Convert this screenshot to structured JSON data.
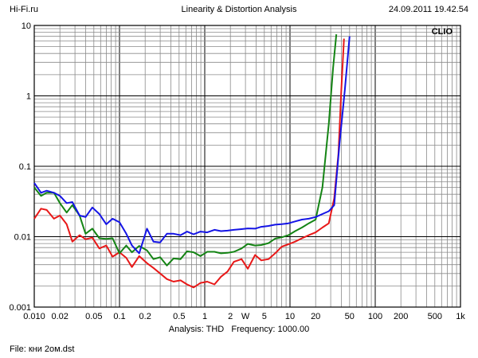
{
  "header": {
    "site": "Hi-Fi.ru",
    "title": "Linearity & Distortion Analysis",
    "timestamp": "24.09.2011 19.42.54"
  },
  "footer": {
    "analysis": "Analysis: THD",
    "frequency": "Frequency: 1000.00",
    "file": "File: кни 2ом.dst"
  },
  "brand_label": "CLIO",
  "chart_data": {
    "type": "line",
    "xscale": "log",
    "yscale": "log",
    "xlim": [
      0.01,
      1000
    ],
    "ylim": [
      0.001,
      10
    ],
    "grid": true,
    "xticks": [
      {
        "v": 0.01,
        "label": "0.010"
      },
      {
        "v": 0.02,
        "label": "0.02"
      },
      {
        "v": 0.05,
        "label": "0.05"
      },
      {
        "v": 0.1,
        "label": "0.1"
      },
      {
        "v": 0.2,
        "label": "0.2"
      },
      {
        "v": 0.5,
        "label": "0.5"
      },
      {
        "v": 1,
        "label": "1"
      },
      {
        "v": 2,
        "label": "2"
      },
      {
        "v": 3,
        "label": "W"
      },
      {
        "v": 5,
        "label": "5"
      },
      {
        "v": 10,
        "label": "10"
      },
      {
        "v": 20,
        "label": "20"
      },
      {
        "v": 50,
        "label": "50"
      },
      {
        "v": 100,
        "label": "100"
      },
      {
        "v": 200,
        "label": "200"
      },
      {
        "v": 500,
        "label": "500"
      },
      {
        "v": 1000,
        "label": "1k"
      }
    ],
    "yticks": [
      {
        "v": 10,
        "label": "10"
      },
      {
        "v": 1,
        "label": "1"
      },
      {
        "v": 0.1,
        "label": "0.1"
      },
      {
        "v": 0.01,
        "label": "0.01"
      },
      {
        "v": 0.001,
        "label": "0.001"
      }
    ],
    "series": [
      {
        "color": "#e81818",
        "points": [
          [
            0.01,
            0.018
          ],
          [
            0.012,
            0.025
          ],
          [
            0.014,
            0.024
          ],
          [
            0.017,
            0.018
          ],
          [
            0.02,
            0.02
          ],
          [
            0.024,
            0.015
          ],
          [
            0.028,
            0.0085
          ],
          [
            0.034,
            0.0105
          ],
          [
            0.04,
            0.0092
          ],
          [
            0.048,
            0.0097
          ],
          [
            0.058,
            0.0068
          ],
          [
            0.07,
            0.0075
          ],
          [
            0.083,
            0.0052
          ],
          [
            0.1,
            0.006
          ],
          [
            0.12,
            0.005
          ],
          [
            0.14,
            0.0037
          ],
          [
            0.17,
            0.0053
          ],
          [
            0.21,
            0.0042
          ],
          [
            0.25,
            0.0036
          ],
          [
            0.3,
            0.003
          ],
          [
            0.36,
            0.0025
          ],
          [
            0.43,
            0.0023
          ],
          [
            0.52,
            0.0024
          ],
          [
            0.62,
            0.0021
          ],
          [
            0.74,
            0.0019
          ],
          [
            0.89,
            0.0022
          ],
          [
            1.07,
            0.0023
          ],
          [
            1.3,
            0.0021
          ],
          [
            1.55,
            0.0027
          ],
          [
            1.85,
            0.0032
          ],
          [
            2.2,
            0.0044
          ],
          [
            2.7,
            0.0048
          ],
          [
            3.2,
            0.0035
          ],
          [
            3.9,
            0.0055
          ],
          [
            4.6,
            0.0046
          ],
          [
            5.6,
            0.0048
          ],
          [
            6.7,
            0.0058
          ],
          [
            8,
            0.0072
          ],
          [
            9.6,
            0.0078
          ],
          [
            11.5,
            0.0085
          ],
          [
            13.8,
            0.0095
          ],
          [
            16.6,
            0.0105
          ],
          [
            20,
            0.0115
          ],
          [
            24,
            0.0135
          ],
          [
            28.5,
            0.0155
          ],
          [
            33,
            0.035
          ],
          [
            37,
            0.15
          ],
          [
            40,
            1.2
          ],
          [
            43,
            6.5
          ]
        ]
      },
      {
        "color": "#148414",
        "points": [
          [
            0.01,
            0.05
          ],
          [
            0.012,
            0.038
          ],
          [
            0.014,
            0.042
          ],
          [
            0.017,
            0.042
          ],
          [
            0.02,
            0.03
          ],
          [
            0.024,
            0.022
          ],
          [
            0.028,
            0.028
          ],
          [
            0.034,
            0.02
          ],
          [
            0.04,
            0.011
          ],
          [
            0.048,
            0.013
          ],
          [
            0.058,
            0.0095
          ],
          [
            0.07,
            0.0093
          ],
          [
            0.083,
            0.0095
          ],
          [
            0.1,
            0.0058
          ],
          [
            0.12,
            0.0075
          ],
          [
            0.14,
            0.006
          ],
          [
            0.17,
            0.0074
          ],
          [
            0.21,
            0.0064
          ],
          [
            0.25,
            0.0048
          ],
          [
            0.3,
            0.0051
          ],
          [
            0.36,
            0.0039
          ],
          [
            0.43,
            0.0049
          ],
          [
            0.52,
            0.0048
          ],
          [
            0.62,
            0.0062
          ],
          [
            0.74,
            0.006
          ],
          [
            0.89,
            0.0053
          ],
          [
            1.07,
            0.0061
          ],
          [
            1.3,
            0.0061
          ],
          [
            1.55,
            0.0058
          ],
          [
            1.85,
            0.0059
          ],
          [
            2.2,
            0.0061
          ],
          [
            2.7,
            0.0068
          ],
          [
            3.2,
            0.0079
          ],
          [
            3.9,
            0.0075
          ],
          [
            4.6,
            0.0076
          ],
          [
            5.6,
            0.0081
          ],
          [
            6.7,
            0.0094
          ],
          [
            8,
            0.0098
          ],
          [
            9.6,
            0.0105
          ],
          [
            11.5,
            0.012
          ],
          [
            13.8,
            0.0135
          ],
          [
            16.6,
            0.0155
          ],
          [
            20,
            0.0175
          ],
          [
            24,
            0.05
          ],
          [
            28.5,
            0.4
          ],
          [
            32,
            2.5
          ],
          [
            35,
            7.5
          ]
        ]
      },
      {
        "color": "#1414e6",
        "points": [
          [
            0.01,
            0.058
          ],
          [
            0.012,
            0.042
          ],
          [
            0.014,
            0.045
          ],
          [
            0.017,
            0.042
          ],
          [
            0.02,
            0.038
          ],
          [
            0.024,
            0.03
          ],
          [
            0.028,
            0.031
          ],
          [
            0.034,
            0.02
          ],
          [
            0.04,
            0.019
          ],
          [
            0.048,
            0.026
          ],
          [
            0.058,
            0.021
          ],
          [
            0.07,
            0.015
          ],
          [
            0.083,
            0.018
          ],
          [
            0.1,
            0.016
          ],
          [
            0.12,
            0.011
          ],
          [
            0.14,
            0.0075
          ],
          [
            0.17,
            0.0058
          ],
          [
            0.21,
            0.013
          ],
          [
            0.25,
            0.0085
          ],
          [
            0.3,
            0.0083
          ],
          [
            0.36,
            0.011
          ],
          [
            0.43,
            0.011
          ],
          [
            0.52,
            0.0105
          ],
          [
            0.62,
            0.0118
          ],
          [
            0.74,
            0.0108
          ],
          [
            0.89,
            0.0118
          ],
          [
            1.07,
            0.0115
          ],
          [
            1.3,
            0.0125
          ],
          [
            1.55,
            0.012
          ],
          [
            1.85,
            0.0122
          ],
          [
            2.2,
            0.0125
          ],
          [
            2.7,
            0.0128
          ],
          [
            3.2,
            0.0131
          ],
          [
            3.9,
            0.013
          ],
          [
            4.6,
            0.0138
          ],
          [
            5.6,
            0.0142
          ],
          [
            6.7,
            0.0148
          ],
          [
            8,
            0.0151
          ],
          [
            9.6,
            0.0155
          ],
          [
            11.5,
            0.0165
          ],
          [
            13.8,
            0.0175
          ],
          [
            16.6,
            0.018
          ],
          [
            20,
            0.019
          ],
          [
            24,
            0.021
          ],
          [
            28.5,
            0.023
          ],
          [
            33,
            0.028
          ],
          [
            38,
            0.2
          ],
          [
            44,
            1.2
          ],
          [
            50,
            7.0
          ]
        ]
      }
    ]
  }
}
